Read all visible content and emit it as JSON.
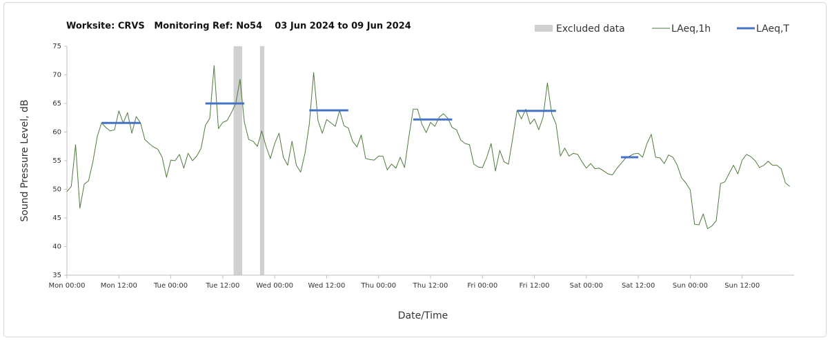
{
  "chart_data": {
    "type": "line",
    "title": "Worksite: CRVS   Monitoring Ref: No54    03 Jun 2024 to 09 Jun 2024",
    "x_label": "Date/Time",
    "y_label": "Sound Pressure Level, dB",
    "xlim": [
      0,
      168
    ],
    "ylim": [
      35,
      75
    ],
    "yticks": [
      35,
      40,
      45,
      50,
      55,
      60,
      65,
      70,
      75
    ],
    "xticks": [
      {
        "value": 0,
        "label": "Mon 00:00"
      },
      {
        "value": 12,
        "label": "Mon 12:00"
      },
      {
        "value": 24,
        "label": "Tue 00:00"
      },
      {
        "value": 36,
        "label": "Tue 12:00"
      },
      {
        "value": 48,
        "label": "Wed 00:00"
      },
      {
        "value": 60,
        "label": "Wed 12:00"
      },
      {
        "value": 72,
        "label": "Thu 00:00"
      },
      {
        "value": 84,
        "label": "Thu 12:00"
      },
      {
        "value": 96,
        "label": "Fri 00:00"
      },
      {
        "value": 108,
        "label": "Fri 12:00"
      },
      {
        "value": 120,
        "label": "Sat 00:00"
      },
      {
        "value": 132,
        "label": "Sat 12:00"
      },
      {
        "value": 144,
        "label": "Sun 00:00"
      },
      {
        "value": 156,
        "label": "Sun 12:00"
      }
    ],
    "excluded": {
      "name": "Excluded data",
      "color": "#d0d0d0",
      "ranges": [
        [
          38.5,
          40.5
        ],
        [
          44.6,
          45.6
        ]
      ]
    },
    "series": [
      {
        "name": "LAeq,1h",
        "color": "#4e7a3c",
        "width": 1,
        "x": [
          0,
          1,
          2,
          3,
          4,
          5,
          6,
          7,
          8,
          9,
          10,
          11,
          12,
          13,
          14,
          15,
          16,
          17,
          18,
          19,
          20,
          21,
          22,
          23,
          24,
          25,
          26,
          27,
          28,
          29,
          30,
          31,
          32,
          33,
          34,
          35,
          36,
          37,
          38,
          39,
          40,
          41,
          42,
          43,
          44,
          45,
          46,
          47,
          48,
          49,
          50,
          51,
          52,
          53,
          54,
          55,
          56,
          57,
          58,
          59,
          60,
          61,
          62,
          63,
          64,
          65,
          66,
          67,
          68,
          69,
          70,
          71,
          72,
          73,
          74,
          75,
          76,
          77,
          78,
          79,
          80,
          81,
          82,
          83,
          84,
          85,
          86,
          87,
          88,
          89,
          90,
          91,
          92,
          93,
          94,
          95,
          96,
          97,
          98,
          99,
          100,
          101,
          102,
          103,
          104,
          105,
          106,
          107,
          108,
          109,
          110,
          111,
          112,
          113,
          114,
          115,
          116,
          117,
          118,
          119,
          120,
          121,
          122,
          123,
          124,
          125,
          126,
          127,
          128,
          129,
          130,
          131,
          132,
          133,
          134,
          135,
          136,
          137,
          138,
          139,
          140,
          141,
          142,
          143,
          144,
          145,
          146,
          147,
          148,
          149,
          150,
          151,
          152,
          153,
          154,
          155,
          156,
          157,
          158,
          159,
          160,
          161,
          162,
          163,
          164,
          165,
          166,
          167
        ],
        "values": [
          49.6,
          50.5,
          57.8,
          46.7,
          50.9,
          51.5,
          54.8,
          59.2,
          61.6,
          60.8,
          60.2,
          60.4,
          63.7,
          61.6,
          63.4,
          59.8,
          62.7,
          61.6,
          58.7,
          58.0,
          57.4,
          57.0,
          55.6,
          52.1,
          55.1,
          55.0,
          56.1,
          53.7,
          56.3,
          55.0,
          55.8,
          57.2,
          61.2,
          62.4,
          71.6,
          60.6,
          61.7,
          62.0,
          63.4,
          65.0,
          69.2,
          61.7,
          58.7,
          58.4,
          57.5,
          60.2,
          57.5,
          55.4,
          58.0,
          59.8,
          55.6,
          54.2,
          58.4,
          54.2,
          53.0,
          56.3,
          61.4,
          70.4,
          62.0,
          59.8,
          62.2,
          61.6,
          61.0,
          63.8,
          61.1,
          60.7,
          58.4,
          57.4,
          59.5,
          55.4,
          55.2,
          55.1,
          55.8,
          55.8,
          53.4,
          54.4,
          53.7,
          55.6,
          53.8,
          59.2,
          64.0,
          64.0,
          61.4,
          59.9,
          61.7,
          61.0,
          62.6,
          63.2,
          62.4,
          60.8,
          60.4,
          58.6,
          58.0,
          57.8,
          54.4,
          53.9,
          53.8,
          55.6,
          58.0,
          53.2,
          56.8,
          54.8,
          54.4,
          59.0,
          63.8,
          62.3,
          64.0,
          61.4,
          62.3,
          60.4,
          62.6,
          68.6,
          63.2,
          61.4,
          55.8,
          57.2,
          55.8,
          56.3,
          56.1,
          54.8,
          53.7,
          54.5,
          53.6,
          53.7,
          53.2,
          52.7,
          52.5,
          53.6,
          54.5,
          55.4,
          55.8,
          56.2,
          56.3,
          55.6,
          58.0,
          59.6,
          55.6,
          55.5,
          54.5,
          56.0,
          55.6,
          54.2,
          52.0,
          51.1,
          49.9,
          43.9,
          43.8,
          45.7,
          43.1,
          43.6,
          44.5,
          51.0,
          51.3,
          52.8,
          54.2,
          52.7,
          55.1,
          56.1,
          55.7,
          55.0,
          53.8,
          54.2,
          54.9,
          54.2,
          54.2,
          53.6,
          51.1,
          50.5
        ]
      },
      {
        "name": "LAeq,T",
        "color": "#4472c4",
        "width": 3,
        "x": [
          8,
          17,
          24,
          32,
          41,
          48,
          56,
          65,
          72,
          80,
          89,
          96,
          104,
          113,
          120,
          128,
          132
        ],
        "values": [
          61.6,
          61.6,
          null,
          65.0,
          65.0,
          null,
          63.8,
          63.8,
          null,
          62.2,
          62.2,
          null,
          63.7,
          63.7,
          null,
          55.6,
          55.6
        ]
      }
    ]
  }
}
